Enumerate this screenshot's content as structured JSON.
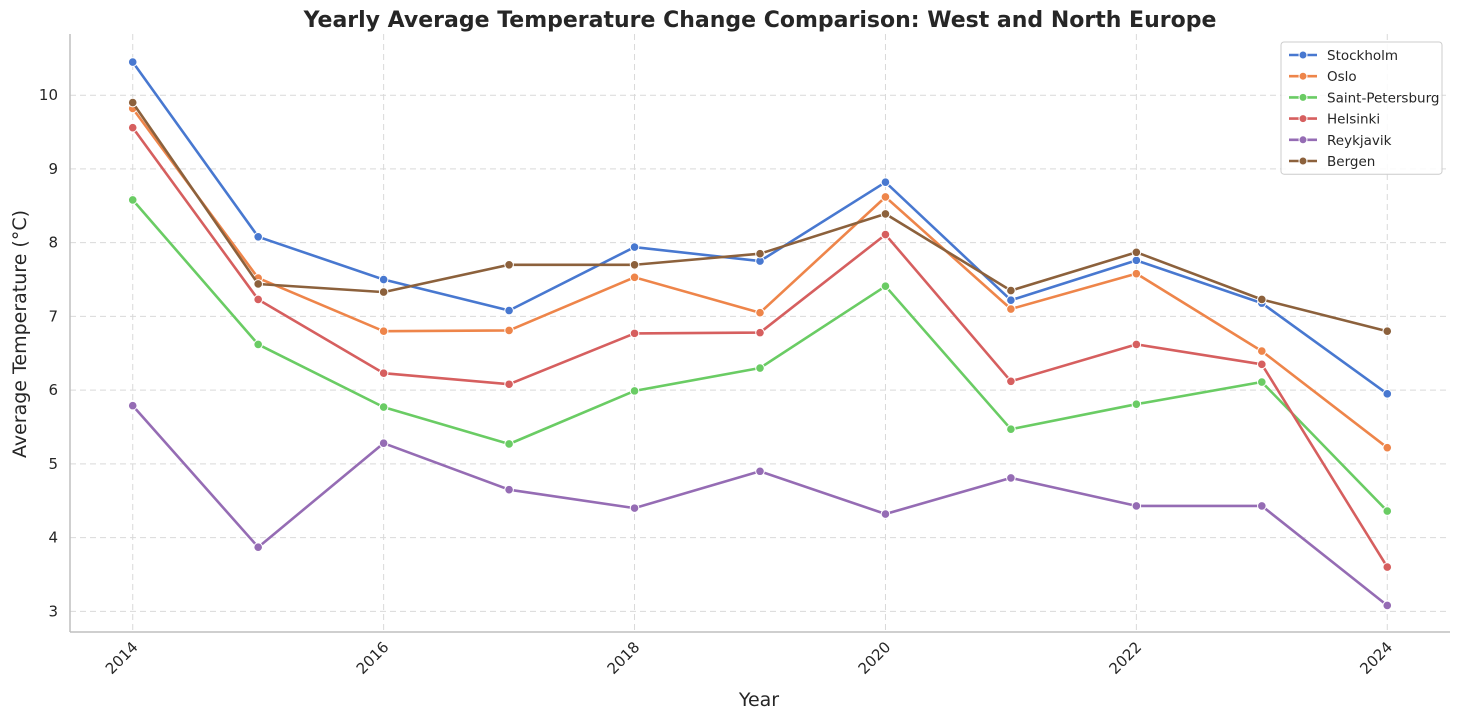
{
  "chart_data": {
    "type": "line",
    "title": "Yearly Average Temperature Change Comparison: West and North Europe",
    "xlabel": "Year",
    "ylabel": "Average Temperature (°C)",
    "x": [
      2014,
      2015,
      2016,
      2017,
      2018,
      2019,
      2020,
      2021,
      2022,
      2023,
      2024
    ],
    "xticks": [
      2014,
      2016,
      2018,
      2020,
      2022,
      2024
    ],
    "yticks": [
      3,
      4,
      5,
      6,
      7,
      8,
      9,
      10
    ],
    "xlim": [
      2013.5,
      2024.5
    ],
    "ylim": [
      2.72,
      10.83
    ],
    "grid": true,
    "legend_position": "top-right",
    "series": [
      {
        "name": "Stockholm",
        "color": "#4878d0",
        "values": [
          10.45,
          8.08,
          7.5,
          7.08,
          7.94,
          7.75,
          8.82,
          7.22,
          7.76,
          7.18,
          5.95
        ]
      },
      {
        "name": "Oslo",
        "color": "#ee854a",
        "values": [
          9.82,
          7.52,
          6.8,
          6.81,
          7.53,
          7.05,
          8.62,
          7.1,
          7.58,
          6.53,
          5.22
        ]
      },
      {
        "name": "Saint-Petersburg",
        "color": "#6acc64",
        "values": [
          8.58,
          6.62,
          5.77,
          5.27,
          5.99,
          6.3,
          7.41,
          5.47,
          5.81,
          6.11,
          4.36
        ]
      },
      {
        "name": "Helsinki",
        "color": "#d65f5f",
        "values": [
          9.56,
          7.23,
          6.23,
          6.08,
          6.77,
          6.78,
          8.11,
          6.12,
          6.62,
          6.35,
          3.6
        ]
      },
      {
        "name": "Reykjavik",
        "color": "#956cb4",
        "values": [
          5.79,
          3.87,
          5.28,
          4.65,
          4.4,
          4.9,
          4.32,
          4.81,
          4.43,
          4.43,
          3.08
        ]
      },
      {
        "name": "Bergen",
        "color": "#8c613c",
        "values": [
          9.9,
          7.44,
          7.33,
          7.7,
          7.7,
          7.85,
          8.39,
          7.35,
          7.87,
          7.23,
          6.8
        ]
      }
    ]
  }
}
